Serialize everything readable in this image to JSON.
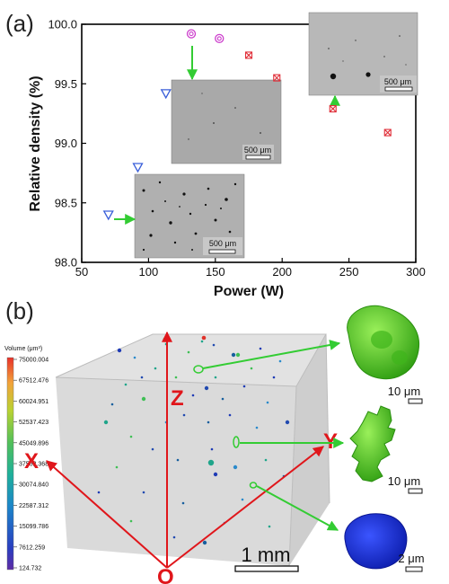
{
  "panel_a": {
    "label": "(a)",
    "scale_labels": [
      "500 μm",
      "500 μm",
      "500 μm"
    ]
  },
  "panel_b": {
    "label": "(b)",
    "colorbar_title": "Volume (μm³)",
    "colorbar_ticks": [
      "75000.004",
      "67512.476",
      "60024.951",
      "52537.423",
      "45049.896",
      "37562.368",
      "30074.840",
      "22587.312",
      "15099.786",
      "7612.259",
      "124.732"
    ],
    "axis_x": "X",
    "axis_y": "Y",
    "axis_z": "Z",
    "origin": "O",
    "scalebar": "1 mm",
    "pore_scales": [
      "10 μm",
      "10 μm",
      "2 μm"
    ],
    "colors": {
      "axis": "#e0161b",
      "arrow": "#33cc33",
      "pore_green": "#54d21c",
      "pore_blue": "#1a2fd6"
    }
  },
  "chart_data": {
    "type": "scatter",
    "xlabel": "Power (W)",
    "ylabel": "Relative density (%)",
    "xlim": [
      50,
      300
    ],
    "ylim": [
      98.0,
      100.0
    ],
    "xticks": [
      50,
      100,
      150,
      200,
      250,
      300
    ],
    "yticks": [
      98.0,
      98.5,
      99.0,
      99.5,
      100.0
    ],
    "yticklabels": [
      "98.0",
      "98.5",
      "99.0",
      "99.5",
      "100.0"
    ],
    "series": [
      {
        "marker": "triangle-down",
        "color": "#3a5fd9",
        "points": [
          [
            70,
            98.4
          ],
          [
            92,
            98.8
          ],
          [
            113,
            99.42
          ]
        ]
      },
      {
        "marker": "double-circle",
        "color": "#cc3ecc",
        "points": [
          [
            132,
            99.92
          ],
          [
            153,
            99.88
          ]
        ]
      },
      {
        "marker": "square-x",
        "color": "#e0303a",
        "points": [
          [
            175,
            99.74
          ],
          [
            196,
            99.55
          ],
          [
            238,
            99.29
          ],
          [
            279,
            99.09
          ]
        ]
      }
    ]
  }
}
